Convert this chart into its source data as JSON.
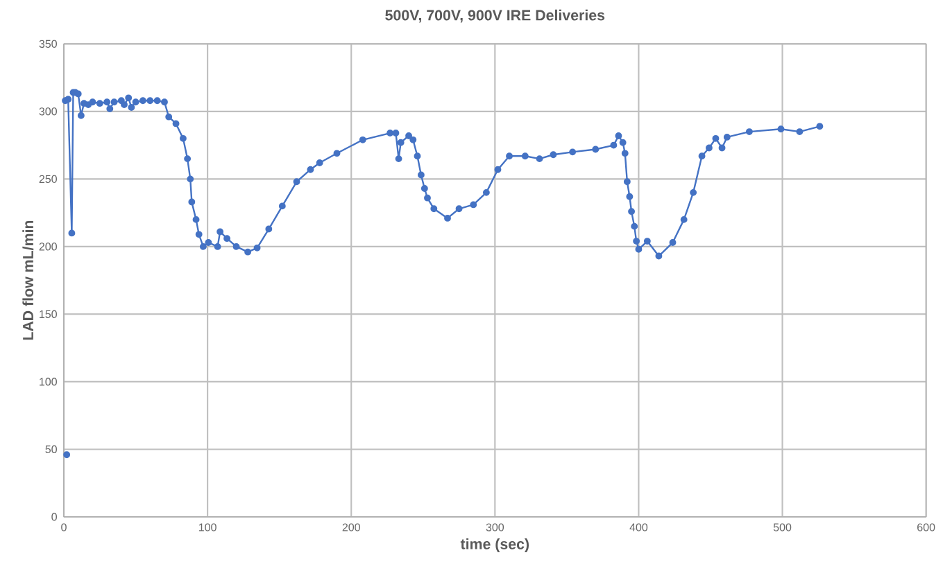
{
  "chart_data": {
    "type": "line",
    "title": "500V, 700V, 900V IRE Deliveries",
    "xlabel": "time (sec)",
    "ylabel": "LAD flow mL/min",
    "xlim": [
      0,
      600
    ],
    "ylim": [
      0,
      350
    ],
    "xticks": [
      0,
      100,
      200,
      300,
      400,
      500,
      600
    ],
    "yticks": [
      0,
      50,
      100,
      150,
      200,
      250,
      300,
      350
    ],
    "grid": true,
    "marker": "circle",
    "line_style": "solid",
    "series": [
      {
        "type": "scatter",
        "color": "#4472c4",
        "x": [
          2
        ],
        "values": [
          46
        ]
      },
      {
        "color": "#4472c4",
        "x": [
          1,
          3,
          5.5,
          6.5,
          8,
          10,
          12,
          14,
          17,
          20,
          25,
          30,
          32,
          35,
          40,
          42,
          45,
          47,
          50,
          55,
          60,
          65,
          70,
          73,
          78,
          83,
          86,
          88,
          89,
          92,
          94,
          97,
          100.6,
          107,
          108.7,
          113.5,
          120,
          128,
          134.5,
          142.6,
          152,
          162,
          171.6,
          178,
          190,
          208,
          227,
          231,
          233,
          234.5,
          240,
          243,
          246,
          248.6,
          251,
          253,
          257.5,
          267,
          275,
          285,
          294,
          302,
          310,
          321,
          331,
          340.6,
          354,
          370,
          382.6,
          386,
          389,
          390.5,
          392,
          393.7,
          395,
          397,
          398.4,
          400,
          406,
          414,
          423.7,
          431.5,
          438,
          444,
          449,
          453.6,
          458,
          461.5,
          477,
          499,
          512,
          526
        ],
        "values": [
          308,
          309,
          210,
          314,
          314,
          313,
          297,
          306,
          305,
          307,
          306,
          307,
          302,
          307,
          308,
          305,
          310,
          303,
          307,
          308,
          308,
          308,
          307,
          296,
          291,
          280,
          265,
          250,
          233,
          220,
          209,
          200,
          203,
          200,
          211,
          206,
          200,
          196,
          199,
          213,
          230,
          248,
          257,
          262,
          269,
          279,
          284,
          284,
          265,
          277,
          282,
          279,
          267,
          253,
          243,
          236,
          228,
          221,
          228,
          231,
          240,
          257,
          267,
          267,
          265,
          268,
          270,
          272,
          275,
          282,
          277,
          269,
          248,
          237,
          226,
          215,
          204,
          198,
          204,
          193,
          203,
          220,
          240,
          267,
          273,
          280,
          273,
          281,
          285,
          287,
          285,
          289
        ]
      }
    ]
  }
}
